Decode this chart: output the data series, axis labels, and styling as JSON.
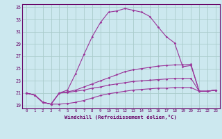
{
  "xlabel": "Windchill (Refroidissement éolien,°C)",
  "bg_color": "#cce8ef",
  "grid_color": "#aacccc",
  "line_color": "#993399",
  "spine_color": "#660066",
  "xlim": [
    -0.5,
    23.5
  ],
  "ylim": [
    18.5,
    35.5
  ],
  "yticks": [
    19,
    21,
    23,
    25,
    27,
    29,
    31,
    33,
    35
  ],
  "xticks": [
    0,
    1,
    2,
    3,
    4,
    5,
    6,
    7,
    8,
    9,
    10,
    11,
    12,
    13,
    14,
    15,
    16,
    17,
    18,
    19,
    20,
    21,
    22,
    23
  ],
  "lines": [
    [
      21.0,
      20.7,
      19.5,
      19.2,
      21.0,
      21.5,
      24.2,
      27.3,
      30.2,
      32.5,
      34.2,
      34.4,
      34.8,
      34.5,
      34.2,
      33.5,
      31.8,
      30.2,
      29.2,
      25.3,
      25.5,
      21.3,
      21.3,
      21.5
    ],
    [
      21.0,
      20.7,
      19.5,
      19.2,
      21.0,
      21.2,
      21.5,
      22.0,
      22.5,
      23.0,
      23.5,
      24.0,
      24.5,
      24.8,
      25.0,
      25.2,
      25.4,
      25.5,
      25.6,
      25.6,
      25.7,
      21.3,
      21.3,
      21.5
    ],
    [
      21.0,
      20.7,
      19.5,
      19.2,
      21.0,
      21.1,
      21.3,
      21.5,
      21.8,
      22.0,
      22.3,
      22.5,
      22.7,
      22.9,
      23.0,
      23.1,
      23.2,
      23.3,
      23.4,
      23.4,
      23.4,
      21.3,
      21.3,
      21.5
    ],
    [
      21.0,
      20.7,
      19.5,
      19.2,
      19.2,
      19.3,
      19.5,
      19.8,
      20.2,
      20.6,
      20.9,
      21.1,
      21.3,
      21.5,
      21.6,
      21.7,
      21.8,
      21.8,
      21.9,
      21.9,
      21.9,
      21.3,
      21.3,
      21.5
    ]
  ]
}
